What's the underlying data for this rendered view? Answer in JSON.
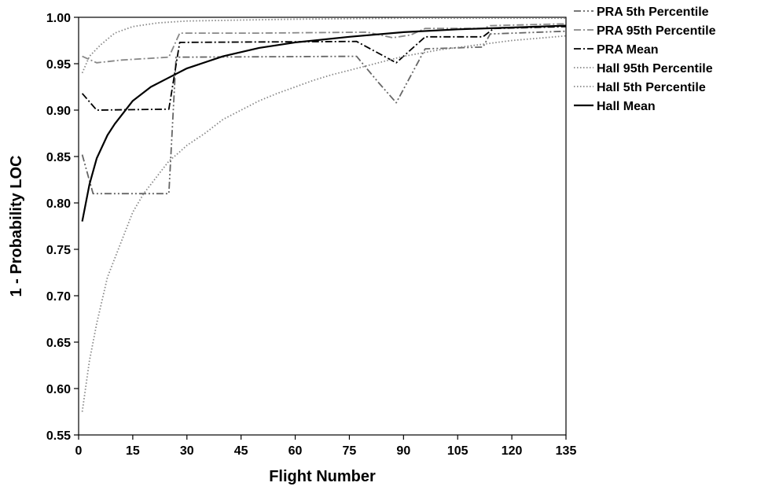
{
  "chart_data": {
    "type": "line",
    "title": "",
    "xlabel": "Flight Number",
    "ylabel": "1 - Probability LOC",
    "xlim": [
      0,
      135
    ],
    "ylim": [
      0.55,
      1.0
    ],
    "x_ticks": [
      0,
      15,
      30,
      45,
      60,
      75,
      90,
      105,
      120,
      135
    ],
    "x_tick_labels": [
      "0",
      "15",
      "30",
      "45",
      "60",
      "75",
      "90",
      "105",
      "120",
      "135"
    ],
    "y_ticks": [
      0.55,
      0.6,
      0.65,
      0.7,
      0.75,
      0.8,
      0.85,
      0.9,
      0.95,
      1.0
    ],
    "y_tick_labels": [
      "0.55",
      "0.60",
      "0.65",
      "0.70",
      "0.75",
      "0.80",
      "0.85",
      "0.90",
      "0.95",
      "1.00"
    ],
    "grid": false,
    "legend_position": "outside-top-right",
    "series": [
      {
        "name": "PRA 5th Percentile",
        "color": "#666666",
        "dash": "dash-dot-dot",
        "x": [
          1,
          4,
          25,
          27,
          77,
          83,
          88,
          96,
          112,
          114,
          135
        ],
        "y": [
          0.852,
          0.81,
          0.81,
          0.957,
          0.958,
          0.93,
          0.908,
          0.966,
          0.968,
          0.982,
          0.985
        ]
      },
      {
        "name": "PRA 95th Percentile",
        "color": "#888888",
        "dash": "dash-dot",
        "x": [
          1,
          5,
          12,
          25,
          28,
          50,
          80,
          87,
          92,
          96,
          112,
          114,
          135
        ],
        "y": [
          0.958,
          0.951,
          0.954,
          0.957,
          0.983,
          0.983,
          0.984,
          0.978,
          0.981,
          0.988,
          0.988,
          0.991,
          0.993
        ]
      },
      {
        "name": "PRA Mean",
        "color": "#000000",
        "dash": "dash-dot",
        "x": [
          1,
          5,
          25,
          28,
          77,
          88,
          96,
          112,
          115,
          135
        ],
        "y": [
          0.918,
          0.9,
          0.901,
          0.973,
          0.974,
          0.951,
          0.979,
          0.979,
          0.988,
          0.99
        ]
      },
      {
        "name": "Hall 95th Percentile",
        "color": "#888888",
        "dash": "dotted",
        "x": [
          1,
          3,
          6,
          10,
          15,
          22,
          30,
          45,
          60,
          90,
          135
        ],
        "y": [
          0.94,
          0.958,
          0.97,
          0.983,
          0.99,
          0.994,
          0.996,
          0.997,
          0.998,
          0.999,
          0.999
        ]
      },
      {
        "name": "Hall 5th Percentile",
        "color": "#888888",
        "dash": "dotted",
        "x": [
          1,
          3,
          5,
          8,
          10,
          13,
          15,
          18,
          20,
          23,
          25,
          28,
          30,
          35,
          40,
          45,
          50,
          55,
          60,
          65,
          70,
          75,
          80,
          90,
          100,
          110,
          120,
          135
        ],
        "y": [
          0.575,
          0.63,
          0.67,
          0.72,
          0.74,
          0.77,
          0.79,
          0.81,
          0.82,
          0.835,
          0.845,
          0.855,
          0.862,
          0.875,
          0.89,
          0.9,
          0.91,
          0.918,
          0.925,
          0.932,
          0.938,
          0.943,
          0.948,
          0.958,
          0.965,
          0.97,
          0.975,
          0.98
        ]
      },
      {
        "name": "Hall Mean",
        "color": "#000000",
        "dash": "solid",
        "x": [
          1,
          3,
          5,
          8,
          10,
          15,
          20,
          25,
          30,
          40,
          50,
          60,
          75,
          90,
          105,
          120,
          135
        ],
        "y": [
          0.78,
          0.82,
          0.848,
          0.873,
          0.885,
          0.91,
          0.925,
          0.935,
          0.945,
          0.958,
          0.967,
          0.973,
          0.979,
          0.984,
          0.987,
          0.989,
          0.991
        ]
      }
    ]
  }
}
